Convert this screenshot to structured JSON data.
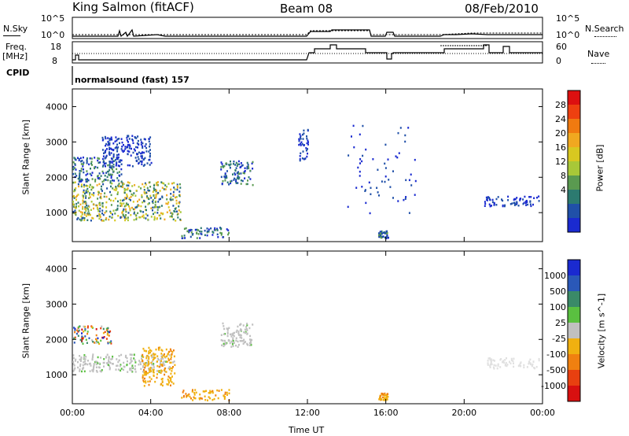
{
  "header": {
    "station": "King Salmon (fitACF)",
    "beam": "Beam 08",
    "date": "08/Feb/2010"
  },
  "top_panels": {
    "nsky_label": "N.Sky",
    "nsearch_label": "N.Search",
    "nsky_ticks": [
      "10^5",
      "10^0"
    ],
    "nsearch_ticks": [
      "10^5",
      "10^0"
    ],
    "freq_label": "Freq.",
    "freq_unit": "[MHz]",
    "freq_ticks": [
      "18",
      "8"
    ],
    "nave_label": "Nave",
    "nave_ticks": [
      "60",
      "0"
    ],
    "cpid_label": "CPID",
    "cpid_value": "normalsound (fast) 157"
  },
  "chart_data": [
    {
      "type": "heatmap",
      "name": "power-panel",
      "ylabel": "Slant Range [km]",
      "yticks": [
        "4000",
        "3000",
        "2000",
        "1000"
      ],
      "ylim": [
        180,
        4500
      ],
      "xlim": [
        0,
        24
      ],
      "colorbar": {
        "label": "Power [dB]",
        "ticks": [
          "28",
          "24",
          "20",
          "16",
          "12",
          "8",
          "4"
        ],
        "colors": [
          "#dd1010",
          "#ee4010",
          "#f07a10",
          "#f0a820",
          "#d8c820",
          "#a8c838",
          "#5a9a50",
          "#2c7a70",
          "#2050a8",
          "#1a2ad0"
        ]
      },
      "regions": [
        {
          "t0": 0.0,
          "t1": 5.5,
          "r0": 800,
          "r1": 1900,
          "level": "high"
        },
        {
          "t0": 0.0,
          "t1": 2.5,
          "r0": 1900,
          "r1": 2600,
          "level": "mid"
        },
        {
          "t0": 1.5,
          "t1": 4.0,
          "r0": 2300,
          "r1": 3200,
          "level": "low"
        },
        {
          "t0": 7.5,
          "t1": 9.2,
          "r0": 1800,
          "r1": 2500,
          "level": "mid"
        },
        {
          "t0": 5.5,
          "t1": 8.0,
          "r0": 300,
          "r1": 600,
          "level": "mid"
        },
        {
          "t0": 15.6,
          "t1": 16.1,
          "r0": 300,
          "r1": 500,
          "level": "mid"
        },
        {
          "t0": 11.5,
          "t1": 12.0,
          "r0": 2500,
          "r1": 3400,
          "level": "low"
        },
        {
          "t0": 21.0,
          "t1": 23.8,
          "r0": 1200,
          "r1": 1500,
          "level": "low"
        },
        {
          "t0": 14.0,
          "t1": 17.5,
          "r0": 1000,
          "r1": 3500,
          "level": "sparse"
        }
      ]
    },
    {
      "type": "heatmap",
      "name": "velocity-panel",
      "ylabel": "Slant Range [km]",
      "yticks": [
        "4000",
        "3000",
        "2000",
        "1000"
      ],
      "ylim": [
        180,
        4500
      ],
      "xlim": [
        0,
        24
      ],
      "xlabel": "Time UT",
      "xticks": [
        "00:00",
        "04:00",
        "08:00",
        "12:00",
        "16:00",
        "20:00",
        "00:00"
      ],
      "colorbar": {
        "label": "Velocity [m s^-1]",
        "ticks": [
          "1000",
          "500",
          "100",
          "25",
          "-25",
          "-100",
          "-500",
          "-1000"
        ],
        "colors": [
          "#1a2ad0",
          "#2a58b8",
          "#3a8a68",
          "#5ac040",
          "#c0c0c0",
          "#f0b010",
          "#f08010",
          "#e84010",
          "#d81010"
        ]
      },
      "regions": [
        {
          "t0": 0.0,
          "t1": 5.2,
          "r0": 1100,
          "r1": 1600,
          "level": "gray"
        },
        {
          "t0": 3.5,
          "t1": 5.2,
          "r0": 700,
          "r1": 1800,
          "level": "orange"
        },
        {
          "t0": 0.0,
          "t1": 2.0,
          "r0": 1900,
          "r1": 2400,
          "level": "mixed"
        },
        {
          "t0": 7.5,
          "t1": 9.2,
          "r0": 1800,
          "r1": 2500,
          "level": "gray"
        },
        {
          "t0": 5.5,
          "t1": 8.0,
          "r0": 300,
          "r1": 600,
          "level": "orange"
        },
        {
          "t0": 15.6,
          "t1": 16.1,
          "r0": 300,
          "r1": 500,
          "level": "orange"
        },
        {
          "t0": 21.0,
          "t1": 23.8,
          "r0": 1200,
          "r1": 1500,
          "level": "lightgray"
        }
      ]
    }
  ]
}
